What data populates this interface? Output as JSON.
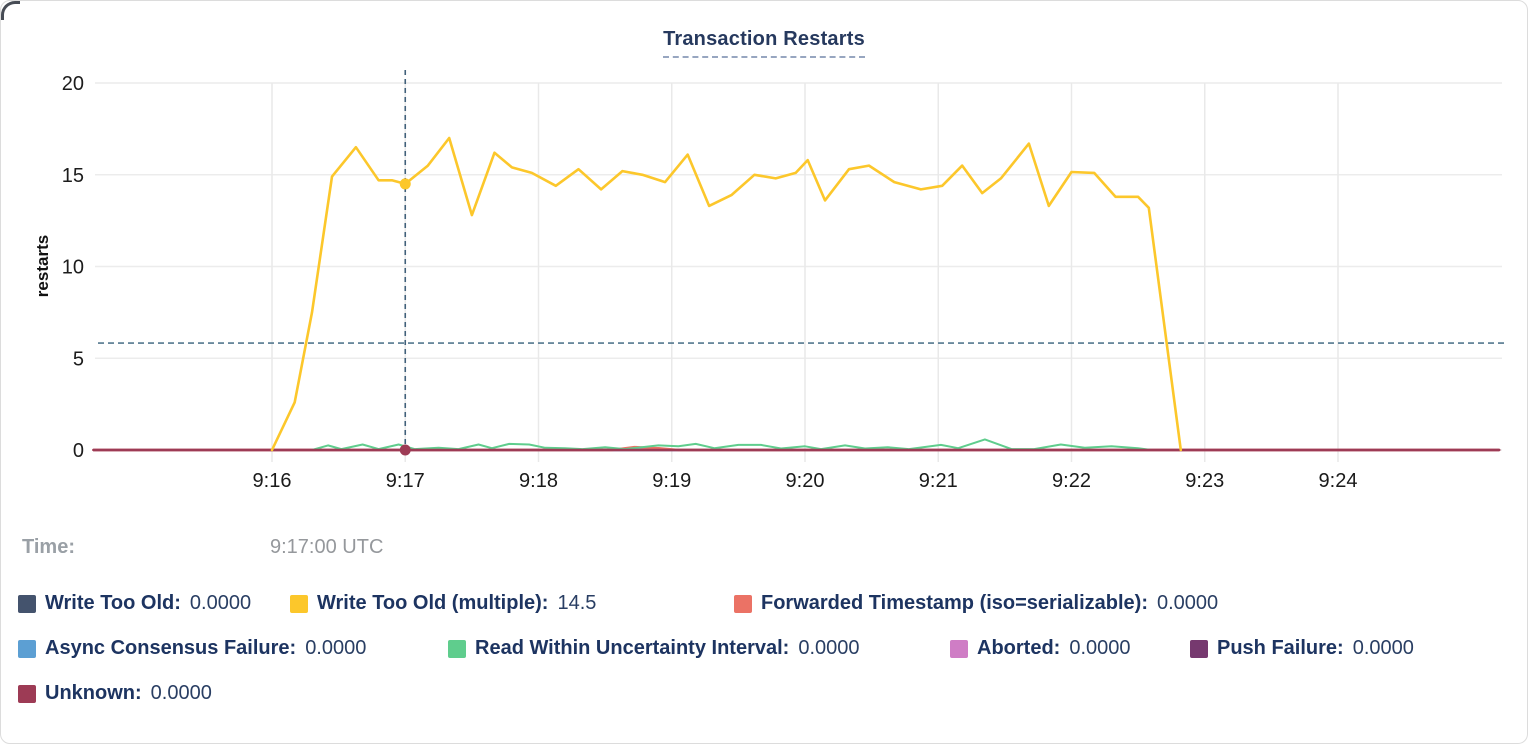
{
  "chart_data": {
    "type": "line",
    "title": "Transaction Restarts",
    "ylabel": "restarts",
    "ylim": [
      0,
      20
    ],
    "y_ticks": [
      0,
      5,
      10,
      15,
      20
    ],
    "x_domain_minutes": [
      14.66,
      25.21
    ],
    "x_ticks": [
      {
        "m": 16,
        "label": "9:16"
      },
      {
        "m": 17,
        "label": "9:17"
      },
      {
        "m": 18,
        "label": "9:18"
      },
      {
        "m": 19,
        "label": "9:19"
      },
      {
        "m": 20,
        "label": "9:20"
      },
      {
        "m": 21,
        "label": "9:21"
      },
      {
        "m": 22,
        "label": "9:22"
      },
      {
        "m": 23,
        "label": "9:23"
      },
      {
        "m": 24,
        "label": "9:24"
      }
    ],
    "grid": true,
    "legend_position": "bottom",
    "hover": {
      "time_label": "Time:",
      "time_value": "9:17:00 UTC",
      "crosshair_x_minute": 17,
      "crosshair_y_value": 5.83,
      "crosshair_color": "#41607a",
      "dots": [
        {
          "series_index": 1,
          "m": 17,
          "value": 14.5
        },
        {
          "series_index": 7,
          "m": 17,
          "value": 0
        }
      ]
    },
    "draw_order": [
      0,
      3,
      5,
      6,
      2,
      4,
      7,
      1
    ],
    "series": [
      {
        "name": "Write Too Old",
        "legend_label": "Write Too Old:",
        "legend_value": "0.0000",
        "color": "#44536d",
        "width": 2.2,
        "points": [
          [
            14.66,
            0
          ],
          [
            25.21,
            0
          ]
        ]
      },
      {
        "name": "Write Too Old (multiple)",
        "legend_label": "Write Too Old (multiple):",
        "legend_value": "14.5",
        "color": "#fcc72b",
        "width": 2.6,
        "points": [
          [
            16.0,
            0
          ],
          [
            16.17,
            2.6
          ],
          [
            16.3,
            7.5
          ],
          [
            16.45,
            14.9
          ],
          [
            16.63,
            16.5
          ],
          [
            16.8,
            14.7
          ],
          [
            16.9,
            14.7
          ],
          [
            17.0,
            14.5
          ],
          [
            17.17,
            15.5
          ],
          [
            17.33,
            17.0
          ],
          [
            17.5,
            12.8
          ],
          [
            17.67,
            16.2
          ],
          [
            17.8,
            15.4
          ],
          [
            17.95,
            15.1
          ],
          [
            18.13,
            14.4
          ],
          [
            18.3,
            15.3
          ],
          [
            18.47,
            14.2
          ],
          [
            18.63,
            15.2
          ],
          [
            18.78,
            15.0
          ],
          [
            18.95,
            14.6
          ],
          [
            19.12,
            16.1
          ],
          [
            19.28,
            13.3
          ],
          [
            19.45,
            13.9
          ],
          [
            19.62,
            15.0
          ],
          [
            19.78,
            14.8
          ],
          [
            19.93,
            15.1
          ],
          [
            20.02,
            15.8
          ],
          [
            20.15,
            13.6
          ],
          [
            20.33,
            15.3
          ],
          [
            20.48,
            15.5
          ],
          [
            20.67,
            14.6
          ],
          [
            20.87,
            14.2
          ],
          [
            21.03,
            14.4
          ],
          [
            21.18,
            15.5
          ],
          [
            21.33,
            14.0
          ],
          [
            21.47,
            14.8
          ],
          [
            21.68,
            16.7
          ],
          [
            21.83,
            13.3
          ],
          [
            22.0,
            15.15
          ],
          [
            22.17,
            15.1
          ],
          [
            22.33,
            13.8
          ],
          [
            22.5,
            13.8
          ],
          [
            22.58,
            13.2
          ],
          [
            22.82,
            0
          ]
        ]
      },
      {
        "name": "Forwarded Timestamp (iso=serializable)",
        "legend_label": "Forwarded Timestamp (iso=serializable):",
        "legend_value": "0.0000",
        "color": "#eb7265",
        "width": 2.4,
        "points": [
          [
            14.66,
            0
          ],
          [
            18.55,
            0
          ],
          [
            18.72,
            0.16
          ],
          [
            18.9,
            0.1
          ],
          [
            19.05,
            0
          ],
          [
            25.21,
            0
          ]
        ]
      },
      {
        "name": "Async Consensus Failure",
        "legend_label": "Async Consensus Failure:",
        "legend_value": "0.0000",
        "color": "#5c9fd3",
        "width": 2.2,
        "points": [
          [
            14.66,
            0
          ],
          [
            25.21,
            0
          ]
        ]
      },
      {
        "name": "Read Within Uncertainty Interval",
        "legend_label": "Read Within Uncertainty Interval:",
        "legend_value": "0.0000",
        "color": "#5fcd8d",
        "width": 2,
        "points": [
          [
            16.3,
            0
          ],
          [
            16.42,
            0.25
          ],
          [
            16.52,
            0.05
          ],
          [
            16.68,
            0.3
          ],
          [
            16.8,
            0.05
          ],
          [
            16.95,
            0.3
          ],
          [
            17.07,
            0.05
          ],
          [
            17.25,
            0.12
          ],
          [
            17.4,
            0.05
          ],
          [
            17.55,
            0.3
          ],
          [
            17.65,
            0.1
          ],
          [
            17.78,
            0.33
          ],
          [
            17.93,
            0.3
          ],
          [
            18.05,
            0.12
          ],
          [
            18.2,
            0.1
          ],
          [
            18.33,
            0.05
          ],
          [
            18.5,
            0.15
          ],
          [
            18.65,
            0.05
          ],
          [
            18.9,
            0.25
          ],
          [
            19.05,
            0.2
          ],
          [
            19.18,
            0.33
          ],
          [
            19.32,
            0.1
          ],
          [
            19.5,
            0.28
          ],
          [
            19.67,
            0.28
          ],
          [
            19.82,
            0.08
          ],
          [
            20.0,
            0.2
          ],
          [
            20.12,
            0.05
          ],
          [
            20.3,
            0.25
          ],
          [
            20.45,
            0.08
          ],
          [
            20.62,
            0.15
          ],
          [
            20.78,
            0.05
          ],
          [
            21.02,
            0.28
          ],
          [
            21.15,
            0.1
          ],
          [
            21.35,
            0.58
          ],
          [
            21.55,
            0.05
          ],
          [
            21.72,
            0.05
          ],
          [
            21.92,
            0.3
          ],
          [
            22.1,
            0.12
          ],
          [
            22.3,
            0.2
          ],
          [
            22.5,
            0.1
          ],
          [
            22.6,
            0
          ]
        ]
      },
      {
        "name": "Aborted",
        "legend_label": "Aborted:",
        "legend_value": "0.0000",
        "color": "#cf7dc5",
        "width": 2.2,
        "points": [
          [
            14.66,
            0
          ],
          [
            25.21,
            0
          ]
        ]
      },
      {
        "name": "Push Failure",
        "legend_label": "Push Failure:",
        "legend_value": "0.0000",
        "color": "#76396f",
        "width": 2.2,
        "points": [
          [
            14.66,
            0
          ],
          [
            25.21,
            0
          ]
        ]
      },
      {
        "name": "Unknown",
        "legend_label": "Unknown:",
        "legend_value": "0.0000",
        "color": "#9d3b55",
        "width": 2.4,
        "points": [
          [
            14.66,
            0
          ],
          [
            25.21,
            0
          ]
        ]
      }
    ]
  }
}
